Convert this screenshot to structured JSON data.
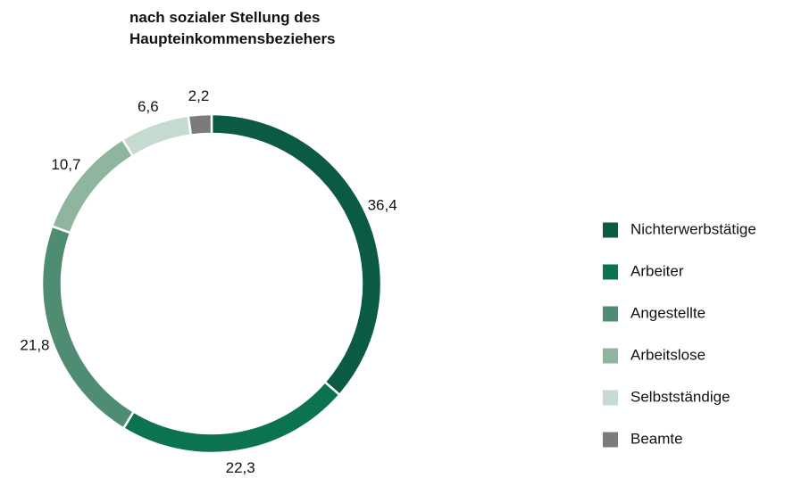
{
  "chart_data": {
    "type": "donut",
    "title": "nach sozialer Stellung des Haupteinkommensbeziehers",
    "categories": [
      "Nichterwerbstätige",
      "Arbeiter",
      "Angestellte",
      "Arbeitslose",
      "Selbstständige",
      "Beamte"
    ],
    "values": [
      36.4,
      22.3,
      21.8,
      10.7,
      6.6,
      2.2
    ],
    "value_labels": [
      "36,4",
      "22,3",
      "21,8",
      "10,7",
      "6,6",
      "2,2"
    ],
    "colors": [
      "#0b5a43",
      "#0b7352",
      "#4f8d72",
      "#8fb59f",
      "#c6dbd0",
      "#7b7b7b"
    ],
    "legend": "right"
  }
}
